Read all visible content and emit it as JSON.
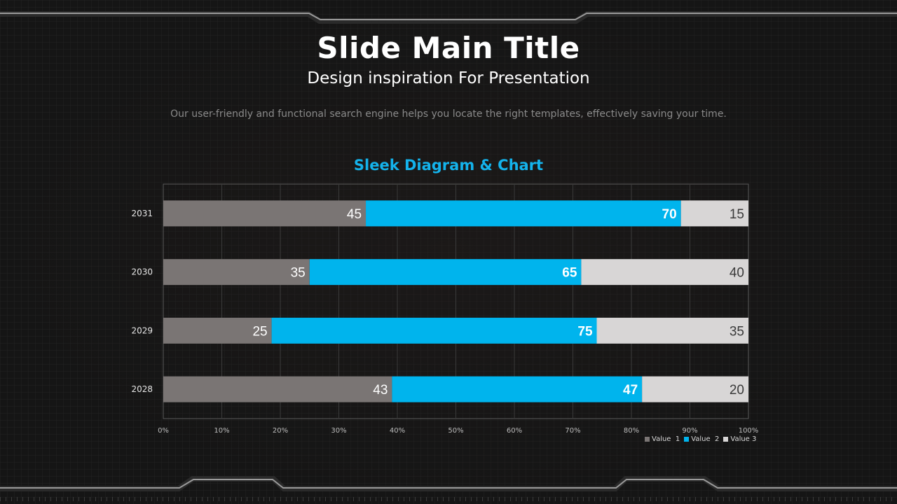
{
  "slide": {
    "title": "Slide Main Title",
    "subtitle": "Design inspiration For Presentation",
    "description": "Our user-friendly and functional search engine helps you locate the right templates, effectively saving your time."
  },
  "colors": {
    "background": "#151515",
    "accent": "#14b3ec",
    "value1": "#7a7574",
    "value2": "#00b4ed",
    "value3": "#d8d6d6"
  },
  "chart_data": {
    "type": "bar",
    "orientation": "horizontal",
    "stacking": "percent",
    "title": "Sleek Diagram & Chart",
    "categories": [
      "2028",
      "2029",
      "2030",
      "2031"
    ],
    "series": [
      {
        "name": "Value  1",
        "values": [
          43,
          25,
          35,
          45
        ]
      },
      {
        "name": "Value  2",
        "values": [
          47,
          75,
          65,
          70
        ]
      },
      {
        "name": "Value 3",
        "values": [
          20,
          35,
          40,
          15
        ]
      }
    ],
    "xticks": [
      "0%",
      "10%",
      "20%",
      "30%",
      "40%",
      "50%",
      "60%",
      "70%",
      "80%",
      "90%",
      "100%"
    ],
    "xlim": [
      0,
      100
    ],
    "grid": true,
    "legend": "bottom-right"
  }
}
